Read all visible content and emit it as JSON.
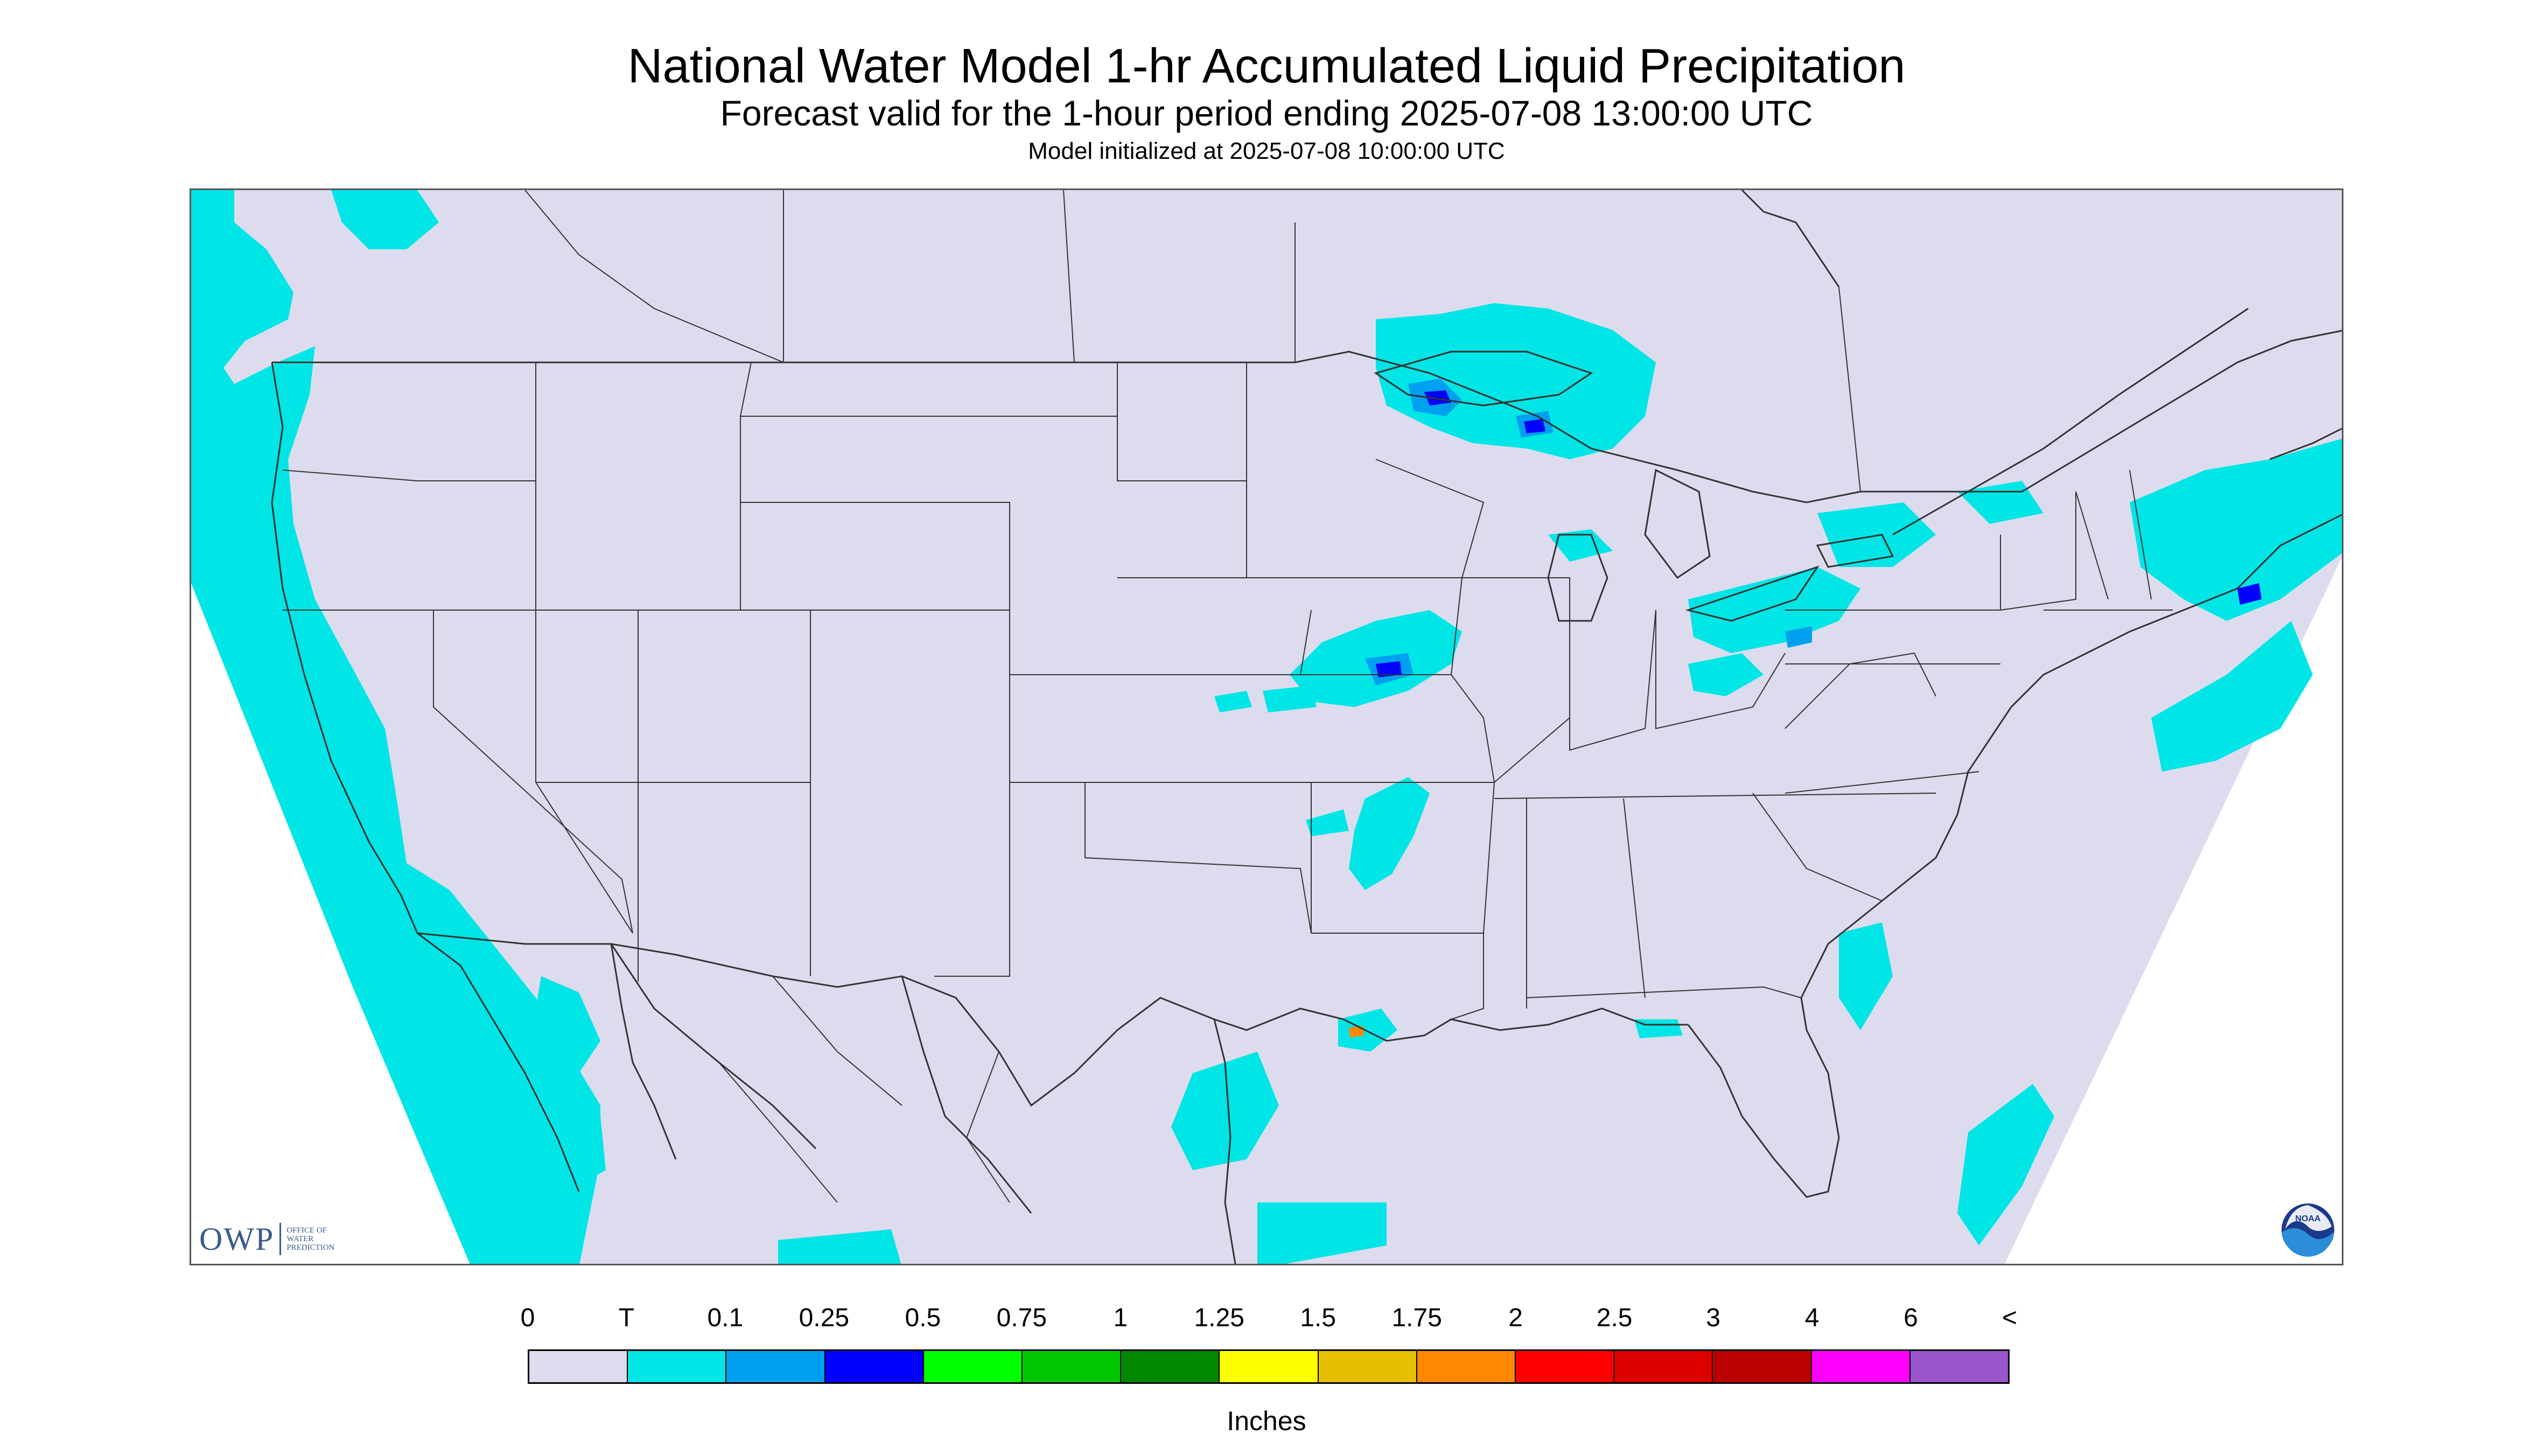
{
  "title": "National Water Model 1-hr Accumulated Liquid Precipitation",
  "subtitle": "Forecast valid for the 1-hour period ending 2025-07-08 13:00:00 UTC",
  "init_line": "Model initialized at 2025-07-08 10:00:00 UTC",
  "logos": {
    "owp_text": "OWP",
    "owp_sub_1": "OFFICE OF",
    "owp_sub_2": "WATER",
    "owp_sub_3": "PREDICTION",
    "noaa_text": "NOAA"
  },
  "legend": {
    "labels": [
      "0",
      "T",
      "0.1",
      "0.25",
      "0.5",
      "0.75",
      "1",
      "1.25",
      "1.5",
      "1.75",
      "2",
      "2.5",
      "3",
      "4",
      "6",
      "<"
    ],
    "colors": [
      "#dcdcee",
      "#00e5e5",
      "#00a0f0",
      "#0000ff",
      "#00ff00",
      "#00c800",
      "#008800",
      "#ffff00",
      "#e6c000",
      "#ff8800",
      "#ff0000",
      "#dd0000",
      "#bb0000",
      "#ff00ff",
      "#9955cc"
    ],
    "units": "Inches"
  },
  "colors": {
    "land_bg": "#dcdcee",
    "boundary": "#333333",
    "precip_trace": "#00e5e5",
    "precip_light": "#00a0f0",
    "precip_mod": "#0000ff"
  }
}
